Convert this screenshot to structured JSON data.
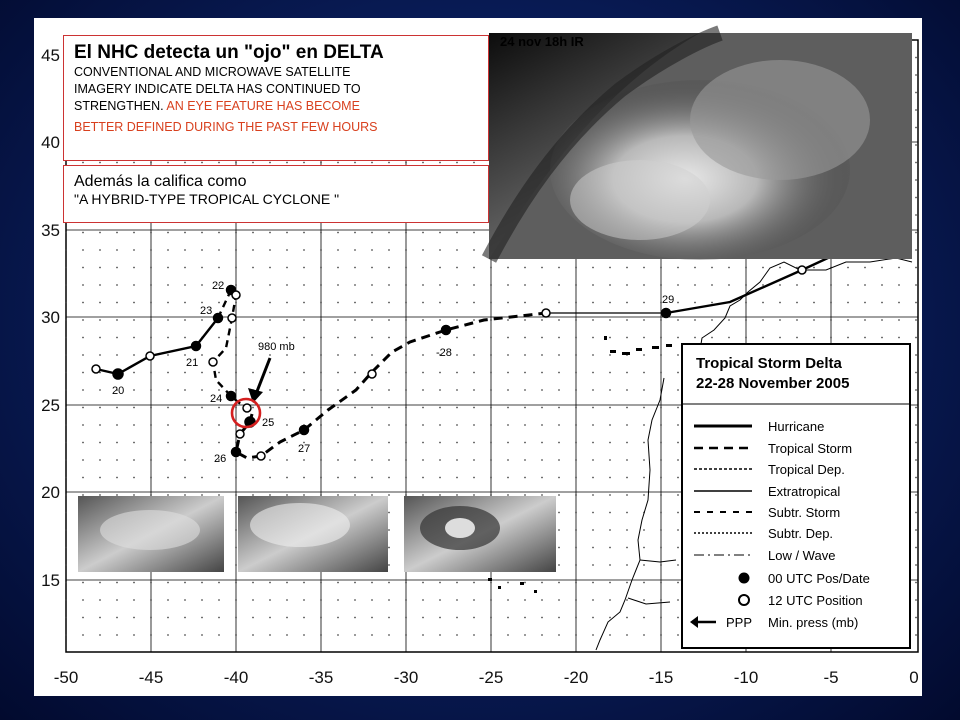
{
  "header": {
    "title": "El NHC detecta un \"ojo\" en  DELTA",
    "line1": "CONVENTIONAL AND MICROWAVE SATELLITE",
    "line2": "IMAGERY INDICATE DELTA HAS CONTINUED TO",
    "line3_black": "STRENGTHEN. ",
    "line3_red": "AN EYE FEATURE HAS BECOME",
    "line4_red": "BETTER DEFINED DURING THE PAST FEW HOURS"
  },
  "hybrid_box": {
    "line1": "Además la califica como",
    "line2": "\"A HYBRID-TYPE TROPICAL CYCLONE \""
  },
  "satellite": {
    "label": "24 nov 18h IR"
  },
  "map": {
    "x_ticks": [
      "-50",
      "-45",
      "-40",
      "-35",
      "-30",
      "-25",
      "-20",
      "-15",
      "-10",
      "-5",
      "0"
    ],
    "y_ticks": [
      "45",
      "40",
      "35",
      "30",
      "25",
      "20",
      "15"
    ],
    "pressure_label": "980 mb",
    "date_labels": [
      "20",
      "21",
      "22",
      "23",
      "24",
      "25",
      "26",
      "27",
      "-28",
      "29"
    ]
  },
  "legend": {
    "title1": "Tropical Storm Delta",
    "title2": "22-28 November 2005",
    "items": [
      "Hurricane",
      "Tropical Storm",
      "Tropical Dep.",
      "Extratropical",
      "Subtr. Storm",
      "Subtr. Dep.",
      "Low / Wave",
      "00 UTC Pos/Date",
      "12 UTC Position"
    ],
    "ppp": "PPP",
    "minpress": "Min. press (mb)"
  },
  "colors": {
    "highlight": "#d42020",
    "accent_text": "#d8401e"
  }
}
